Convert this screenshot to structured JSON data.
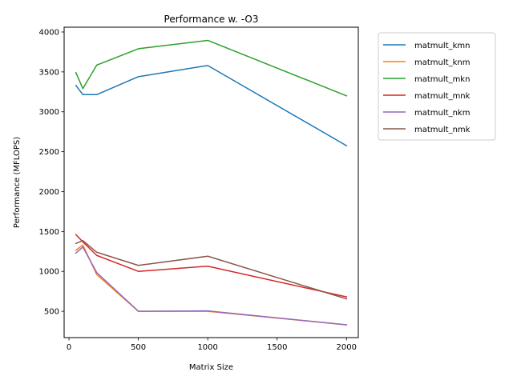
{
  "chart_data": {
    "type": "line",
    "title": "Performance w. -O3",
    "xlabel": "Matrix Size",
    "ylabel": "Performance (MFLOPS)",
    "xlim": [
      -35,
      2085
    ],
    "ylim": [
      170,
      4060
    ],
    "xticks": [
      0,
      500,
      1000,
      1500,
      2000
    ],
    "yticks": [
      500,
      1000,
      1500,
      2000,
      2500,
      3000,
      3500,
      4000
    ],
    "grid": false,
    "legend_position": "outside-right",
    "x": [
      50,
      100,
      200,
      500,
      1000,
      2000
    ],
    "series": [
      {
        "name": "matmult_kmn",
        "color": "#1f77b4",
        "values": [
          3330,
          3215,
          3215,
          3440,
          3580,
          2575
        ]
      },
      {
        "name": "matmult_knm",
        "color": "#ff7f0e",
        "values": [
          1265,
          1330,
          960,
          500,
          500,
          330
        ]
      },
      {
        "name": "matmult_mkn",
        "color": "#2ca02c",
        "values": [
          3490,
          3290,
          3585,
          3790,
          3895,
          3200
        ]
      },
      {
        "name": "matmult_mnk",
        "color": "#d62728",
        "values": [
          1460,
          1370,
          1200,
          1000,
          1065,
          680
        ]
      },
      {
        "name": "matmult_nkm",
        "color": "#9467bd",
        "values": [
          1230,
          1305,
          985,
          500,
          505,
          330
        ]
      },
      {
        "name": "matmult_nmk",
        "color": "#8c564b",
        "values": [
          1350,
          1385,
          1240,
          1075,
          1190,
          655
        ]
      }
    ]
  }
}
